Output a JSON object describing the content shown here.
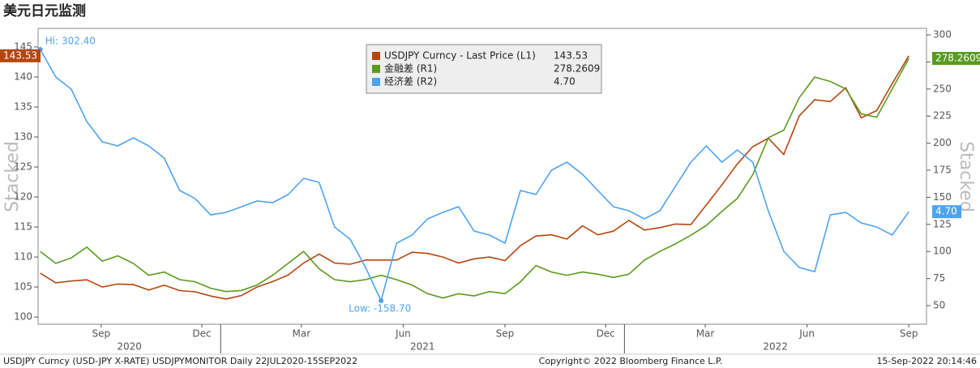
{
  "chart_data": {
    "type": "line",
    "title": "美元日元监测",
    "left_axis_label": "Stacked",
    "right_axis_label": "Stacked",
    "footer_left": "USDJPY Curncy (USD-JPY X-RATE) USDJPYMONITOR  Daily 22JUL2020-15SEP2022",
    "footer_center": "Copyright© 2022 Bloomberg Finance L.P.",
    "footer_right": "15-Sep-2022 20:14:46",
    "x": [
      "2020-07-22",
      "2020-08-05",
      "2020-08-19",
      "2020-09-02",
      "2020-09-16",
      "2020-09-30",
      "2020-10-14",
      "2020-10-28",
      "2020-11-11",
      "2020-11-25",
      "2020-12-09",
      "2020-12-23",
      "2021-01-06",
      "2021-01-20",
      "2021-02-03",
      "2021-02-17",
      "2021-03-03",
      "2021-03-17",
      "2021-03-31",
      "2021-04-14",
      "2021-04-28",
      "2021-05-12",
      "2021-05-26",
      "2021-06-09",
      "2021-06-23",
      "2021-07-07",
      "2021-07-21",
      "2021-08-04",
      "2021-08-18",
      "2021-09-01",
      "2021-09-15",
      "2021-09-29",
      "2021-10-13",
      "2021-10-27",
      "2021-11-10",
      "2021-11-24",
      "2021-12-08",
      "2021-12-22",
      "2022-01-05",
      "2022-01-19",
      "2022-02-02",
      "2022-02-16",
      "2022-03-02",
      "2022-03-16",
      "2022-03-30",
      "2022-04-13",
      "2022-04-27",
      "2022-05-11",
      "2022-05-25",
      "2022-06-08",
      "2022-06-22",
      "2022-07-06",
      "2022-07-20",
      "2022-08-03",
      "2022-08-17",
      "2022-08-31",
      "2022-09-15"
    ],
    "xlim": [
      "2020-07-20",
      "2022-10-01"
    ],
    "xticks": [
      {
        "value": "2020-09-15",
        "label": "Sep"
      },
      {
        "value": "2020-12-15",
        "label": "Dec"
      },
      {
        "value": "2021-03-15",
        "label": "Mar"
      },
      {
        "value": "2021-06-15",
        "label": "Jun"
      },
      {
        "value": "2021-09-15",
        "label": "Sep"
      },
      {
        "value": "2021-12-15",
        "label": "Dec"
      },
      {
        "value": "2022-03-15",
        "label": "Mar"
      },
      {
        "value": "2022-06-15",
        "label": "Jun"
      },
      {
        "value": "2022-09-15",
        "label": "Sep"
      }
    ],
    "years": [
      "2020",
      "2021",
      "2022"
    ],
    "year_boundaries": [
      "2021-01-01",
      "2022-01-01"
    ],
    "ylim": [
      98.8,
      148.1
    ],
    "yticks": [
      100,
      105,
      110,
      115,
      120,
      125,
      130,
      135,
      140,
      145
    ],
    "y2lim": [
      32.8,
      306
    ],
    "y2ticks": [
      50,
      75,
      100,
      125,
      150,
      175,
      200,
      225,
      250,
      275,
      300
    ],
    "y3lim": [
      -201.8,
      341.1
    ],
    "series": [
      {
        "name": "USDJPY Curncy - Last Price (L1)",
        "color": "#b5460f",
        "axis": "y",
        "last_label": "143.53",
        "values": [
          107.3,
          105.7,
          106.0,
          106.2,
          105.0,
          105.5,
          105.4,
          104.5,
          105.3,
          104.4,
          104.2,
          103.5,
          103.0,
          103.6,
          105.0,
          105.9,
          107.0,
          109.0,
          110.5,
          109.0,
          108.8,
          109.5,
          109.5,
          109.5,
          110.8,
          110.6,
          110.0,
          109.0,
          109.7,
          110.0,
          109.4,
          111.9,
          113.5,
          113.7,
          113.0,
          115.2,
          113.7,
          114.3,
          116.1,
          114.5,
          114.9,
          115.5,
          115.4,
          118.7,
          122.0,
          125.5,
          128.4,
          129.8,
          127.1,
          133.5,
          136.2,
          135.9,
          138.2,
          133.2,
          134.4,
          138.9,
          143.53
        ]
      },
      {
        "name": "金融差 (R1)",
        "color": "#5a9a1e",
        "axis": "y2",
        "last_label": "278.2609",
        "values": [
          100,
          89,
          94,
          104,
          91,
          96,
          89,
          78,
          81,
          74,
          72,
          66,
          63,
          64,
          69,
          78,
          89,
          100,
          84,
          74,
          72,
          74,
          78,
          74,
          69,
          61,
          57,
          61,
          59,
          63,
          61,
          72,
          87,
          81,
          78,
          81,
          79,
          76,
          79,
          92,
          100,
          107,
          115,
          124,
          137,
          149,
          171,
          205,
          212,
          242,
          261,
          257,
          250,
          227,
          224,
          250,
          278.2609
        ]
      },
      {
        "name": "经济差 (R2)",
        "color": "#4da3ef",
        "axis": "y3",
        "last_label": "4.70",
        "hi_label": "Hi: 302.40",
        "low_label": "Low: -158.70",
        "values": [
          302.4,
          251.8,
          229.5,
          170.0,
          132.8,
          125.4,
          140.3,
          125.4,
          103.1,
          43.6,
          28.6,
          -1.1,
          3.4,
          13.8,
          24.3,
          21.3,
          36.2,
          65.9,
          58.5,
          -23.4,
          -45.6,
          -97.7,
          -158.7,
          -53.1,
          -38.2,
          -8.5,
          3.4,
          13.8,
          -30.8,
          -38.2,
          -53.1,
          43.6,
          36.2,
          80.8,
          95.6,
          73.3,
          43.6,
          13.8,
          6.4,
          -8.5,
          6.4,
          51.0,
          95.6,
          125.4,
          95.6,
          118.0,
          95.6,
          6.4,
          -68.0,
          -97.7,
          -105.2,
          -1.1,
          3.4,
          -15.9,
          -23.4,
          -38.2,
          4.7
        ]
      }
    ]
  }
}
